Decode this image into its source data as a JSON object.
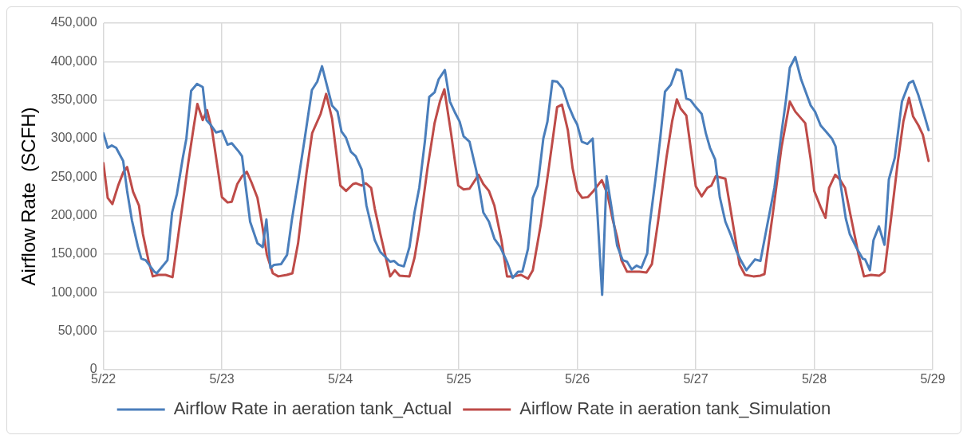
{
  "chart_data": {
    "type": "line",
    "ylabel": "Airflow Rate  (SCFH)",
    "xlim": [
      "--05-22",
      "--05-29"
    ],
    "xticks": [
      {
        "value": "--05-22",
        "label": "5/22"
      },
      {
        "value": "--05-23",
        "label": "5/23"
      },
      {
        "value": "--05-24",
        "label": "5/24"
      },
      {
        "value": "--05-25",
        "label": "5/25"
      },
      {
        "value": "--05-26",
        "label": "5/26"
      },
      {
        "value": "--05-27",
        "label": "5/27"
      },
      {
        "value": "--05-28",
        "label": "5/28"
      },
      {
        "value": "--05-29",
        "label": "5/29"
      }
    ],
    "ylim": [
      0,
      450000
    ],
    "yticks": [
      {
        "value": 0,
        "label": "0"
      },
      {
        "value": 50000,
        "label": "50,000"
      },
      {
        "value": 100000,
        "label": "100,000"
      },
      {
        "value": 150000,
        "label": "150,000"
      },
      {
        "value": 200000,
        "label": "200,000"
      },
      {
        "value": 250000,
        "label": "250,000"
      },
      {
        "value": 300000,
        "label": "300,000"
      },
      {
        "value": 350000,
        "label": "350,000"
      },
      {
        "value": 400000,
        "label": "400,000"
      },
      {
        "value": 450000,
        "label": "450,000"
      }
    ],
    "grid": true,
    "legend": "bottom",
    "marker": "none",
    "line_style": "solid",
    "series": [
      {
        "name": "Airflow Rate in aeration tank_Actual",
        "color": "#4a7ebb",
        "x": [
          "--05-22T00:00",
          "--05-22T00:52",
          "--05-22T01:41",
          "--05-22T02:34",
          "--05-22T04:00",
          "--05-22T04:48",
          "--05-22T05:46",
          "--05-22T06:58",
          "--05-22T07:41",
          "--05-22T08:34",
          "--05-22T10:19",
          "--05-22T10:48",
          "--05-22T12:58",
          "--05-22T13:55",
          "--05-22T14:53",
          "--05-22T16:05",
          "--05-22T16:48",
          "--05-22T17:46",
          "--05-22T18:58",
          "--05-22T20:07",
          "--05-22T20:53",
          "--05-22T21:43",
          "--05-22T22:48",
          "--05-23T00:00",
          "--05-23T01:09",
          "--05-23T02:00",
          "--05-23T03:26",
          "--05-23T04:05",
          "--05-23T04:48",
          "--05-23T05:43",
          "--05-23T07:12",
          "--05-23T08:17",
          "--05-23T09:01",
          "--05-23T09:50",
          "--05-23T10:34",
          "--05-23T12:00",
          "--05-23T13:12",
          "--05-23T14:10",
          "--05-23T15:33",
          "--05-23T16:48",
          "--05-23T18:14",
          "--05-23T19:19",
          "--05-23T20:17",
          "--05-23T21:07",
          "--05-23T22:19",
          "--05-23T23:25",
          "--05-24T00:14",
          "--05-24T01:09",
          "--05-24T02:07",
          "--05-24T03:07",
          "--05-24T04:19",
          "--05-24T05:17",
          "--05-24T06:58",
          "--05-24T08:04",
          "--05-24T10:05",
          "--05-24T10:54",
          "--05-24T11:46",
          "--05-24T12:52",
          "--05-24T14:00",
          "--05-24T15:01",
          "--05-24T15:59",
          "--05-24T17:07",
          "--05-24T18:00",
          "--05-24T19:05",
          "--05-24T19:55",
          "--05-24T21:10",
          "--05-24T22:12",
          "--05-24T23:17",
          "--05-25T00:10",
          "--05-25T00:58",
          "--05-25T02:10",
          "--05-25T03:33",
          "--05-25T04:58",
          "--05-25T06:06",
          "--05-25T07:12",
          "--05-25T08:24",
          "--05-25T09:46",
          "--05-25T10:54",
          "--05-25T12:00",
          "--05-25T12:52",
          "--05-25T14:01",
          "--05-25T14:59",
          "--05-25T15:59",
          "--05-25T17:07",
          "--05-25T17:57",
          "--05-25T18:58",
          "--05-25T19:55",
          "--05-25T21:04",
          "--05-25T22:12",
          "--05-25T23:20",
          "--05-26T00:00",
          "--05-26T00:55",
          "--05-26T02:02",
          "--05-26T03:07",
          "--05-26T04:05",
          "--05-26T05:02",
          "--05-26T05:56",
          "--05-26T06:58",
          "--05-26T08:04",
          "--05-26T09:12",
          "--05-26T10:05",
          "--05-26T11:02",
          "--05-26T12:00",
          "--05-26T12:58",
          "--05-26T14:10",
          "--05-26T14:38",
          "--05-26T15:50",
          "--05-26T16:48",
          "--05-26T17:46",
          "--05-26T18:58",
          "--05-26T20:05",
          "--05-26T21:03",
          "--05-26T22:05",
          "--05-26T22:55",
          "--05-27T00:00",
          "--05-27T01:12",
          "--05-27T02:02",
          "--05-27T02:53",
          "--05-27T03:55",
          "--05-27T04:52",
          "--05-27T06:00",
          "--05-27T07:09",
          "--05-27T08:17",
          "--05-27T09:07",
          "--05-27T10:16",
          "--05-27T12:00",
          "--05-27T13:06",
          "--05-27T14:31",
          "--05-27T15:56",
          "--05-27T17:21",
          "--05-27T18:14",
          "--05-27T19:03",
          "--05-27T20:10",
          "--05-27T21:20",
          "--05-27T23:17",
          "--05-28T00:10",
          "--05-28T01:18",
          "--05-28T02:24",
          "--05-28T03:35",
          "--05-28T04:19",
          "--05-28T05:17",
          "--05-28T06:24",
          "--05-28T07:12",
          "--05-28T08:38",
          "--05-28T09:50",
          "--05-28T10:19",
          "--05-28T11:17",
          "--05-28T12:00",
          "--05-28T13:06",
          "--05-28T14:14",
          "--05-28T15:07",
          "--05-28T16:19",
          "--05-28T17:46",
          "--05-28T19:12",
          "--05-28T20:01",
          "--05-28T21:07",
          "--05-28T22:19",
          "--05-28T23:10"
        ],
        "values": [
          307000,
          288000,
          291000,
          288000,
          271000,
          232000,
          194000,
          160000,
          144000,
          142000,
          127000,
          125000,
          142000,
          204000,
          228000,
          275000,
          300000,
          362000,
          371000,
          367000,
          324000,
          318000,
          308000,
          310000,
          292000,
          294000,
          283000,
          277000,
          239000,
          192000,
          164000,
          159000,
          195000,
          132000,
          136000,
          137000,
          149000,
          194000,
          249000,
          301000,
          363000,
          374000,
          394000,
          373000,
          343000,
          335000,
          309000,
          301000,
          283000,
          277000,
          260000,
          213000,
          168000,
          153000,
          140000,
          141000,
          136000,
          134000,
          159000,
          204000,
          236000,
          296000,
          354000,
          360000,
          377000,
          389000,
          348000,
          333000,
          322000,
          303000,
          296000,
          258000,
          204000,
          192000,
          170000,
          159000,
          140000,
          119000,
          127000,
          127000,
          157000,
          223000,
          239000,
          300000,
          322000,
          375000,
          374000,
          365000,
          343000,
          326000,
          318000,
          296000,
          293000,
          300000,
          202000,
          97000,
          251000,
          209000,
          161000,
          142000,
          140000,
          130000,
          135000,
          132000,
          151000,
          187000,
          247000,
          300000,
          361000,
          370000,
          390000,
          388000,
          352000,
          350000,
          341000,
          332000,
          307000,
          288000,
          273000,
          224000,
          192000,
          174000,
          153000,
          142000,
          129000,
          143000,
          141000,
          189000,
          236000,
          307000,
          348000,
          392000,
          406000,
          377000,
          343000,
          335000,
          317000,
          309000,
          300000,
          290000,
          243000,
          196000,
          176000,
          157000,
          144000,
          143000,
          129000,
          168000,
          186000,
          162000,
          247000,
          275000,
          348000,
          372000,
          375000,
          356000,
          330000,
          311000
        ]
      },
      {
        "name": "Airflow Rate in aeration tank_Simulation",
        "color": "#be4b48",
        "x": [
          "--05-22T00:00",
          "--05-22T00:52",
          "--05-22T01:49",
          "--05-22T02:59",
          "--05-22T04:00",
          "--05-22T04:48",
          "--05-22T06:00",
          "--05-22T07:12",
          "--05-22T08:00",
          "--05-22T09:07",
          "--05-22T10:00",
          "--05-22T11:08",
          "--05-22T12:35",
          "--05-22T14:00",
          "--05-22T15:26",
          "--05-22T17:08",
          "--05-22T18:17",
          "--05-22T19:02",
          "--05-22T20:07",
          "--05-22T20:59",
          "--05-22T22:00",
          "--05-22T23:08",
          "--05-23T00:00",
          "--05-23T01:09",
          "--05-23T02:00",
          "--05-23T03:07",
          "--05-23T04:05",
          "--05-23T05:02",
          "--05-23T06:00",
          "--05-23T07:12",
          "--05-23T08:00",
          "--05-23T09:07",
          "--05-23T10:19",
          "--05-23T11:25",
          "--05-23T13:09",
          "--05-23T14:17",
          "--05-23T15:26",
          "--05-23T17:08",
          "--05-23T18:17",
          "--05-23T20:00",
          "--05-23T21:07",
          "--05-23T22:19",
          "--05-24T00:00",
          "--05-24T01:09",
          "--05-24T02:34",
          "--05-24T03:07",
          "--05-24T04:19",
          "--05-24T05:08",
          "--05-24T06:14",
          "--05-24T06:58",
          "--05-24T08:04",
          "--05-24T10:05",
          "--05-24T11:02",
          "--05-24T12:00",
          "--05-24T14:00",
          "--05-24T15:01",
          "--05-24T15:59",
          "--05-24T17:40",
          "--05-24T19:05",
          "--05-24T20:10",
          "--05-24T21:04",
          "--05-24T22:28",
          "--05-24T23:53",
          "--05-25T00:58",
          "--05-25T02:10",
          "--05-25T04:00",
          "--05-25T04:58",
          "--05-25T06:06",
          "--05-25T07:12",
          "--05-25T08:38",
          "--05-25T09:46",
          "--05-25T11:11",
          "--05-25T12:36",
          "--05-25T14:01",
          "--05-25T14:59",
          "--05-25T16:34",
          "--05-25T18:14",
          "--05-25T19:55",
          "--05-25T20:53",
          "--05-25T22:05",
          "--05-25T23:02",
          "--05-26T00:00",
          "--05-26T01:00",
          "--05-26T02:10",
          "--05-26T03:16",
          "--05-26T04:58",
          "--05-26T06:06",
          "--05-26T07:12",
          "--05-26T08:04",
          "--05-26T08:56",
          "--05-26T10:05",
          "--05-26T11:27",
          "--05-26T12:36",
          "--05-26T14:01",
          "--05-26T15:07",
          "--05-26T16:24",
          "--05-26T18:06",
          "--05-26T19:12",
          "--05-26T20:10",
          "--05-26T20:56",
          "--05-26T22:05",
          "--05-26T23:12",
          "--05-27T00:00",
          "--05-27T01:12",
          "--05-27T02:20",
          "--05-27T03:10",
          "--05-27T04:02",
          "--05-27T06:00",
          "--05-27T07:09",
          "--05-27T08:53",
          "--05-27T09:59",
          "--05-27T11:41",
          "--05-27T13:06",
          "--05-27T13:55",
          "--05-27T15:36",
          "--05-27T17:21",
          "--05-27T19:03",
          "--05-27T20:10",
          "--05-27T22:11",
          "--05-27T23:17",
          "--05-28T00:00",
          "--05-28T01:18",
          "--05-28T02:17",
          "--05-28T03:00",
          "--05-28T04:15",
          "--05-28T05:10",
          "--05-28T06:14",
          "--05-28T07:26",
          "--05-28T08:59",
          "--05-28T10:05",
          "--05-28T11:31",
          "--05-28T13:12",
          "--05-28T14:14",
          "--05-28T15:29",
          "--05-28T16:54",
          "--05-28T18:03",
          "--05-28T19:12",
          "--05-28T20:01",
          "--05-28T21:07",
          "--05-28T22:00",
          "--05-28T23:10"
        ],
        "values": [
          268000,
          223000,
          215000,
          239000,
          256000,
          263000,
          231000,
          213000,
          176000,
          142000,
          121000,
          123000,
          123000,
          120000,
          187000,
          266000,
          315000,
          345000,
          324000,
          337000,
          311000,
          262000,
          224000,
          217000,
          218000,
          241000,
          251000,
          257000,
          243000,
          223000,
          194000,
          149000,
          125000,
          121000,
          123000,
          125000,
          164000,
          255000,
          307000,
          332000,
          358000,
          326000,
          239000,
          232000,
          241000,
          242000,
          239000,
          242000,
          236000,
          209000,
          177000,
          121000,
          129000,
          122000,
          121000,
          145000,
          182000,
          262000,
          320000,
          348000,
          364000,
          305000,
          239000,
          234000,
          235000,
          253000,
          241000,
          232000,
          213000,
          168000,
          121000,
          121000,
          123000,
          118000,
          129000,
          187000,
          262000,
          341000,
          344000,
          311000,
          262000,
          232000,
          223000,
          224000,
          232000,
          246000,
          228000,
          194000,
          172000,
          142000,
          127000,
          127000,
          127000,
          126000,
          137000,
          194000,
          277000,
          322000,
          351000,
          339000,
          330000,
          277000,
          238000,
          225000,
          236000,
          239000,
          251000,
          248000,
          204000,
          136000,
          123000,
          121000,
          122000,
          124000,
          202000,
          288000,
          348000,
          335000,
          320000,
          273000,
          232000,
          211000,
          197000,
          236000,
          253000,
          247000,
          236000,
          198000,
          149000,
          121000,
          123000,
          122000,
          127000,
          192000,
          268000,
          322000,
          353000,
          329000,
          317000,
          305000,
          271000
        ]
      }
    ]
  }
}
